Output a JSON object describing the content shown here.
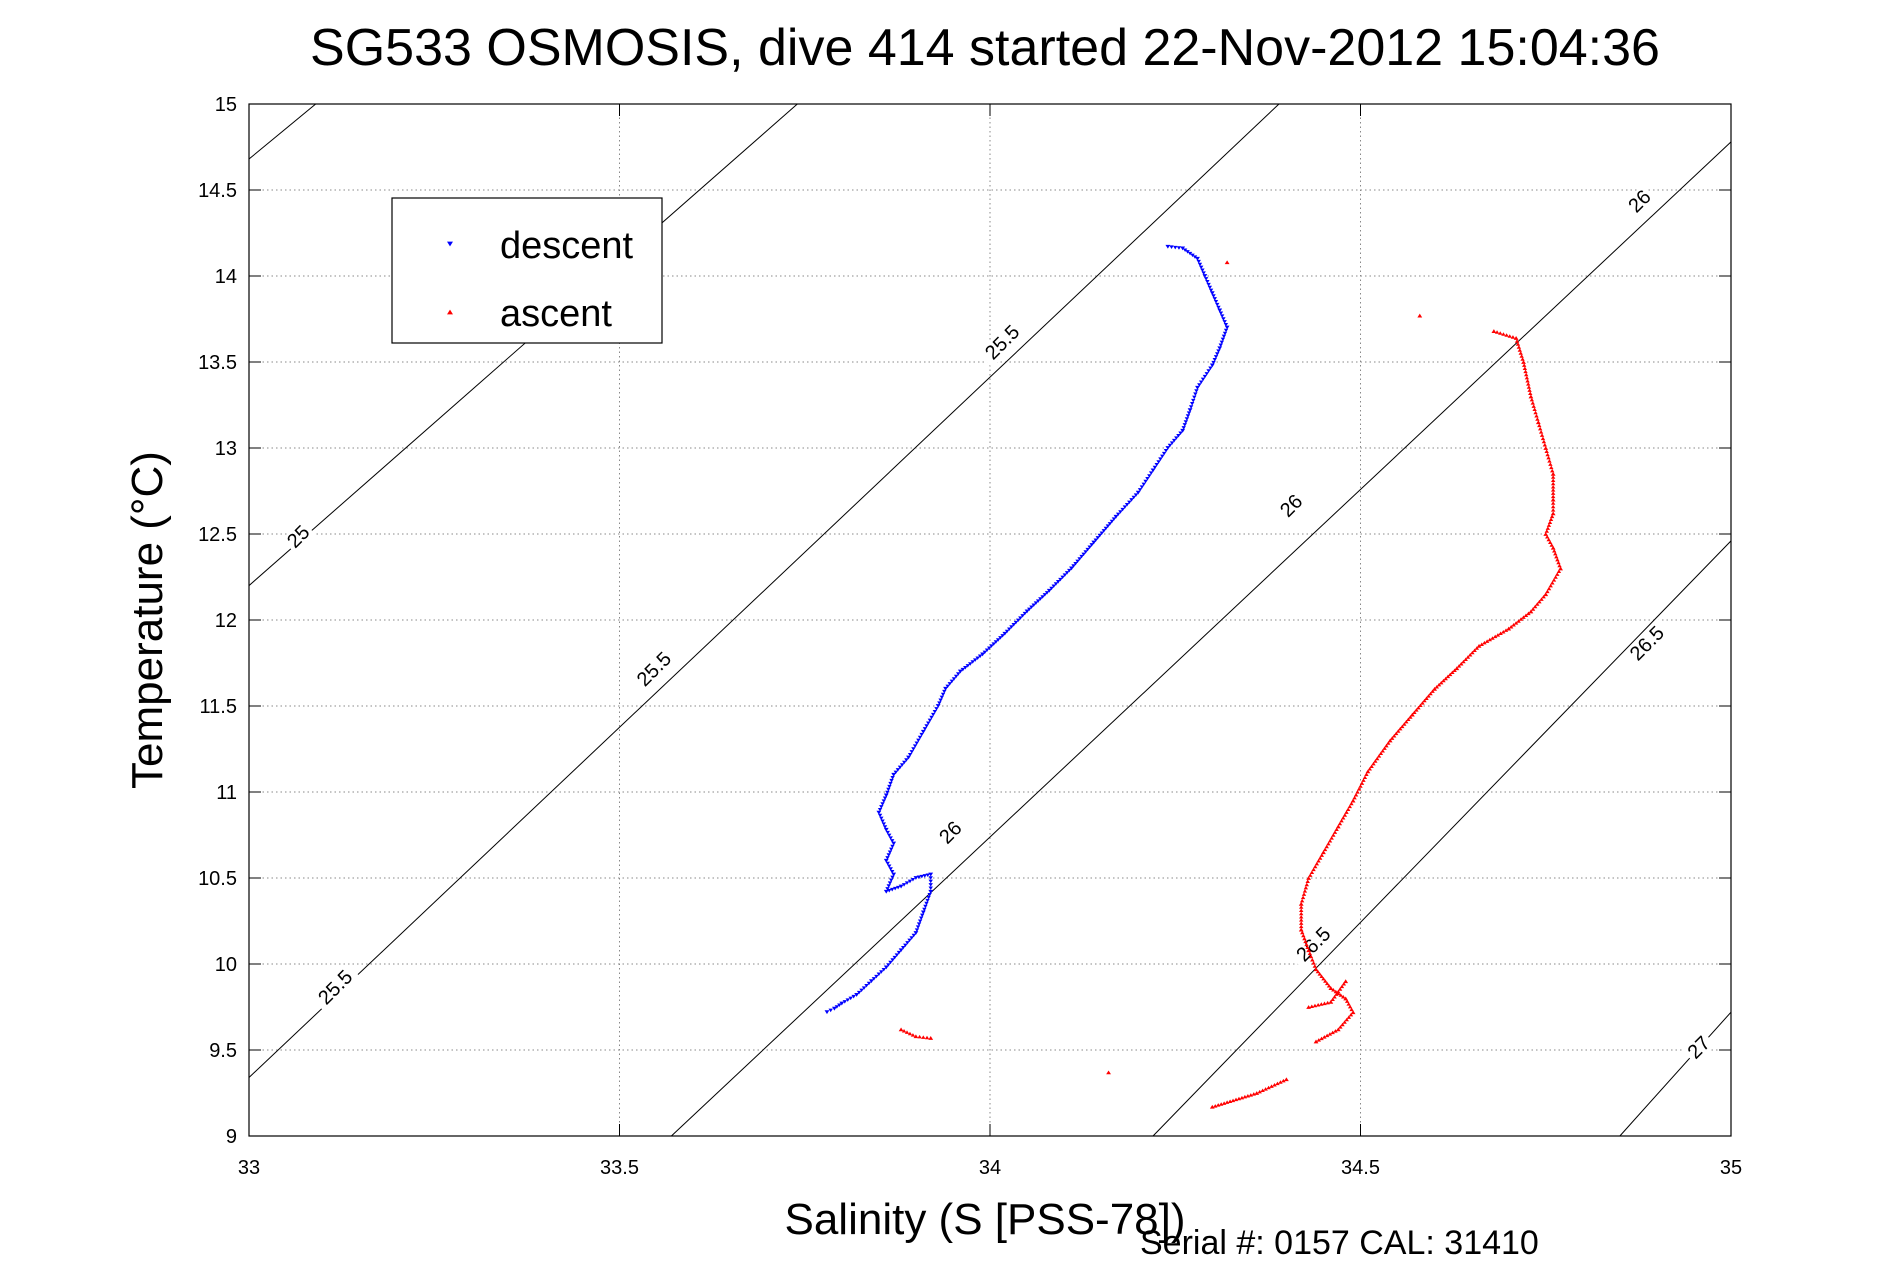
{
  "chart_data": {
    "type": "scatter",
    "title": "SG533 OSMOSIS, dive 414 started 22-Nov-2012 15:04:36",
    "xlabel": "Salinity (S [PSS-78])",
    "ylabel": "Temperature (°C)",
    "xlim": [
      33,
      35
    ],
    "ylim": [
      9,
      15
    ],
    "xticks": [
      "33",
      "33.5",
      "34",
      "34.5",
      "35"
    ],
    "yticks": [
      "9",
      "9.5",
      "10",
      "10.5",
      "11",
      "11.5",
      "12",
      "12.5",
      "13",
      "13.5",
      "14",
      "14.5",
      "15"
    ],
    "grid": true,
    "legend_position": "top-left",
    "footer": "Serial #: 0157  CAL: 31410",
    "contour_lines": [
      {
        "points": [
          [
            33.0,
            14.68
          ],
          [
            33.09,
            15.0
          ]
        ]
      },
      {
        "points": [
          [
            33.0,
            12.2
          ],
          [
            33.74,
            15.0
          ]
        ]
      },
      {
        "points": [
          [
            33.0,
            9.34
          ],
          [
            34.39,
            15.0
          ]
        ]
      },
      {
        "points": [
          [
            33.57,
            9.0
          ],
          [
            35.0,
            14.78
          ]
        ]
      },
      {
        "points": [
          [
            34.22,
            9.0
          ],
          [
            35.0,
            12.46
          ]
        ]
      },
      {
        "points": [
          [
            34.85,
            9.0
          ],
          [
            35.0,
            9.72
          ]
        ]
      }
    ],
    "contour_labels": [
      {
        "text": "25",
        "x": 33.07,
        "y": 12.47
      },
      {
        "text": "25.5",
        "x": 33.55,
        "y": 11.7
      },
      {
        "text": "25.5",
        "x": 34.02,
        "y": 13.6
      },
      {
        "text": "25.5",
        "x": 33.12,
        "y": 9.85
      },
      {
        "text": "26",
        "x": 33.95,
        "y": 10.75
      },
      {
        "text": "26",
        "x": 34.41,
        "y": 12.65
      },
      {
        "text": "26",
        "x": 34.88,
        "y": 14.42
      },
      {
        "text": "26.5",
        "x": 34.44,
        "y": 10.1
      },
      {
        "text": "26.5",
        "x": 34.89,
        "y": 11.85
      },
      {
        "text": "27",
        "x": 34.96,
        "y": 9.5
      }
    ],
    "series": [
      {
        "name": "descent",
        "color": "#0000ff",
        "marker": "triangle-down",
        "x": [
          34.24,
          34.26,
          34.28,
          34.29,
          34.3,
          34.31,
          34.32,
          34.31,
          34.3,
          34.28,
          34.27,
          34.26,
          34.24,
          34.22,
          34.2,
          34.17,
          34.14,
          34.11,
          34.08,
          34.05,
          34.02,
          33.99,
          33.96,
          33.94,
          33.93,
          33.91,
          33.89,
          33.87,
          33.86,
          33.85,
          33.86,
          33.87,
          33.86,
          33.87,
          33.86,
          33.88,
          33.9,
          33.92,
          33.92,
          33.91,
          33.9,
          33.88,
          33.86,
          33.84,
          33.82,
          33.8,
          33.79,
          33.78
        ],
        "y": [
          14.17,
          14.16,
          14.1,
          14.0,
          13.9,
          13.8,
          13.7,
          13.58,
          13.48,
          13.35,
          13.22,
          13.1,
          13.0,
          12.87,
          12.74,
          12.6,
          12.45,
          12.3,
          12.17,
          12.05,
          11.92,
          11.8,
          11.7,
          11.6,
          11.5,
          11.35,
          11.2,
          11.1,
          10.98,
          10.88,
          10.78,
          10.7,
          10.6,
          10.52,
          10.42,
          10.45,
          10.5,
          10.52,
          10.42,
          10.3,
          10.18,
          10.08,
          9.98,
          9.9,
          9.82,
          9.77,
          9.74,
          9.72
        ]
      },
      {
        "name": "ascent",
        "color": "#ff0000",
        "marker": "triangle-up",
        "x": [
          34.32,
          34.58,
          34.68,
          34.71,
          34.72,
          34.73,
          34.74,
          34.75,
          34.76,
          34.76,
          34.76,
          34.75,
          34.76,
          34.77,
          34.75,
          34.73,
          34.7,
          34.66,
          34.63,
          34.6,
          34.57,
          34.54,
          34.51,
          34.49,
          34.47,
          34.45,
          34.43,
          34.42,
          34.42,
          34.43,
          34.44,
          34.46,
          34.48,
          34.49,
          34.47,
          34.44,
          34.48,
          34.46,
          34.43,
          34.4,
          34.36,
          34.3,
          33.92,
          33.9,
          33.88,
          34.16
        ],
        "y": [
          14.08,
          13.77,
          13.68,
          13.64,
          13.5,
          13.3,
          13.15,
          13.0,
          12.85,
          12.7,
          12.62,
          12.5,
          12.42,
          12.3,
          12.15,
          12.05,
          11.95,
          11.85,
          11.72,
          11.6,
          11.45,
          11.3,
          11.12,
          10.95,
          10.8,
          10.65,
          10.5,
          10.35,
          10.2,
          10.08,
          9.97,
          9.86,
          9.8,
          9.72,
          9.62,
          9.55,
          9.9,
          9.78,
          9.75,
          9.33,
          9.25,
          9.17,
          9.57,
          9.58,
          9.62,
          9.37
        ]
      }
    ]
  }
}
